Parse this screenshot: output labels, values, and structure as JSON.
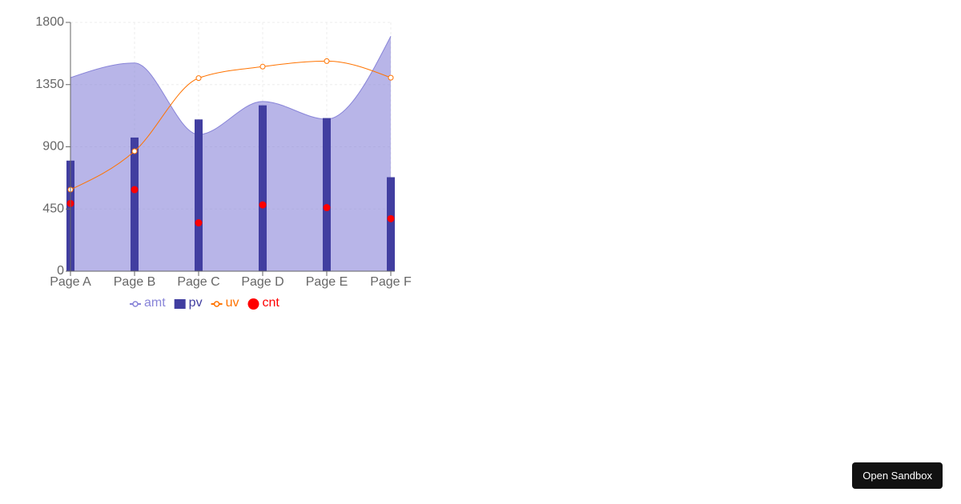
{
  "chart_data": {
    "type": "composed",
    "categories": [
      "Page A",
      "Page B",
      "Page C",
      "Page D",
      "Page E",
      "Page F"
    ],
    "series": [
      {
        "name": "amt",
        "type": "area",
        "color": "#8884d8",
        "values": [
          1400,
          1506,
          989,
          1228,
          1100,
          1700
        ]
      },
      {
        "name": "pv",
        "type": "bar",
        "color": "#413ea0",
        "values": [
          800,
          967,
          1098,
          1200,
          1108,
          680
        ]
      },
      {
        "name": "uv",
        "type": "line",
        "color": "#ff7300",
        "values": [
          590,
          868,
          1397,
          1480,
          1520,
          1400
        ]
      },
      {
        "name": "cnt",
        "type": "scatter",
        "color": "#ff0000",
        "values": [
          490,
          590,
          350,
          480,
          460,
          380
        ]
      }
    ],
    "ylim": [
      0,
      1800
    ],
    "yticks": [
      0,
      450,
      900,
      1350,
      1800
    ],
    "grid": true
  },
  "sandbox_button": "Open Sandbox"
}
